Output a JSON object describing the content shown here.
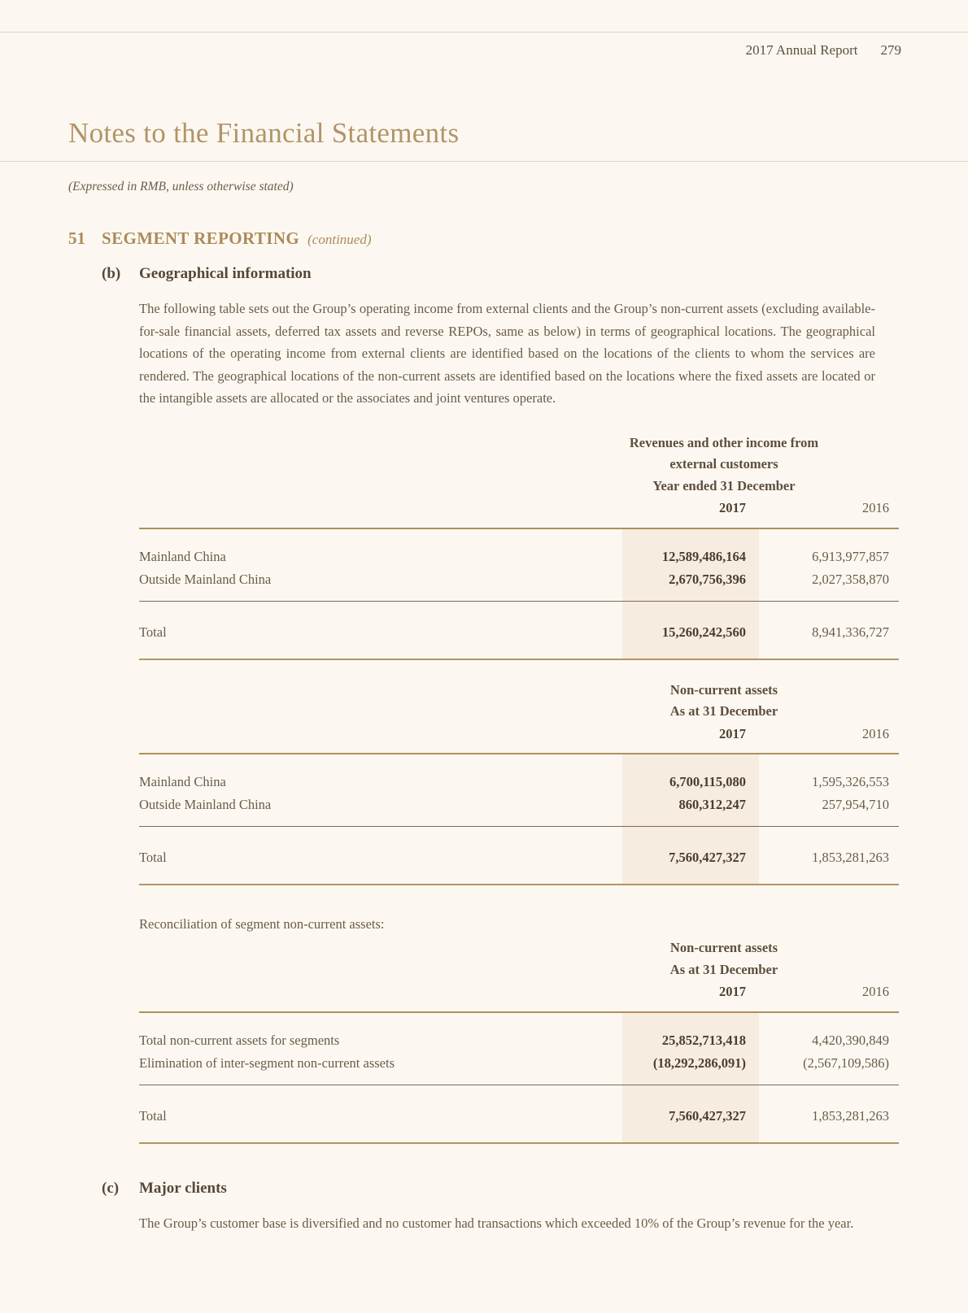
{
  "page": {
    "header_label": "2017 Annual Report",
    "page_number": "279",
    "title": "Notes to the Financial Statements",
    "subtitle": "(Expressed in RMB, unless otherwise stated)"
  },
  "section": {
    "number": "51",
    "title": "SEGMENT REPORTING",
    "continued": "(continued)"
  },
  "subsection_b": {
    "label": "(b)",
    "title": "Geographical information",
    "paragraph": "The following table sets out the Group’s operating income from external clients and the Group’s non-current assets (excluding available-for-sale financial assets, deferred tax assets and reverse REPOs, same as below) in terms of geographical locations. The geographical locations of the operating income from external clients are identified based on the locations of the clients to whom the services are rendered. The geographical locations of the non-current assets are identified based on the locations where the fixed assets are located or the intangible assets are allocated or the associates and joint ventures operate."
  },
  "tables": [
    {
      "header_line1": "Revenues and other income from",
      "header_line2": "external customers",
      "header_line3": "Year ended 31 December",
      "years": {
        "y2017": "2017",
        "y2016": "2016"
      },
      "rows": [
        {
          "label": "Mainland China",
          "v2017": "12,589,486,164",
          "v2016": "6,913,977,857"
        },
        {
          "label": "Outside Mainland China",
          "v2017": "2,670,756,396",
          "v2016": "2,027,358,870"
        }
      ],
      "total": {
        "label": "Total",
        "v2017": "15,260,242,560",
        "v2016": "8,941,336,727"
      }
    },
    {
      "header_line1": "Non-current assets",
      "header_line2": "As at 31 December",
      "years": {
        "y2017": "2017",
        "y2016": "2016"
      },
      "rows": [
        {
          "label": "Mainland China",
          "v2017": "6,700,115,080",
          "v2016": "1,595,326,553"
        },
        {
          "label": "Outside Mainland China",
          "v2017": "860,312,247",
          "v2016": "257,954,710"
        }
      ],
      "total": {
        "label": "Total",
        "v2017": "7,560,427,327",
        "v2016": "1,853,281,263"
      }
    },
    {
      "header_line1": "Non-current assets",
      "header_line2": "As at 31 December",
      "years": {
        "y2017": "2017",
        "y2016": "2016"
      },
      "rows": [
        {
          "label": "Total non-current assets for segments",
          "v2017": "25,852,713,418",
          "v2016": "4,420,390,849"
        },
        {
          "label": "Elimination of inter-segment non-current assets",
          "v2017": "(18,292,286,091)",
          "v2016": "(2,567,109,586)"
        }
      ],
      "total": {
        "label": "Total",
        "v2017": "7,560,427,327",
        "v2016": "1,853,281,263"
      }
    }
  ],
  "reconciliation_label": "Reconciliation of segment non-current assets:",
  "subsection_c": {
    "label": "(c)",
    "title": "Major clients",
    "paragraph": "The Group’s customer base is diversified and no customer had transactions which exceeded 10% of the Group’s revenue for the year."
  },
  "colors": {
    "page_background": "#fcf8f1",
    "highlight_column": "#f6ecdf",
    "accent_gold": "#b3945f",
    "title_gold": "#b29468",
    "body_text": "#6a5b49"
  }
}
